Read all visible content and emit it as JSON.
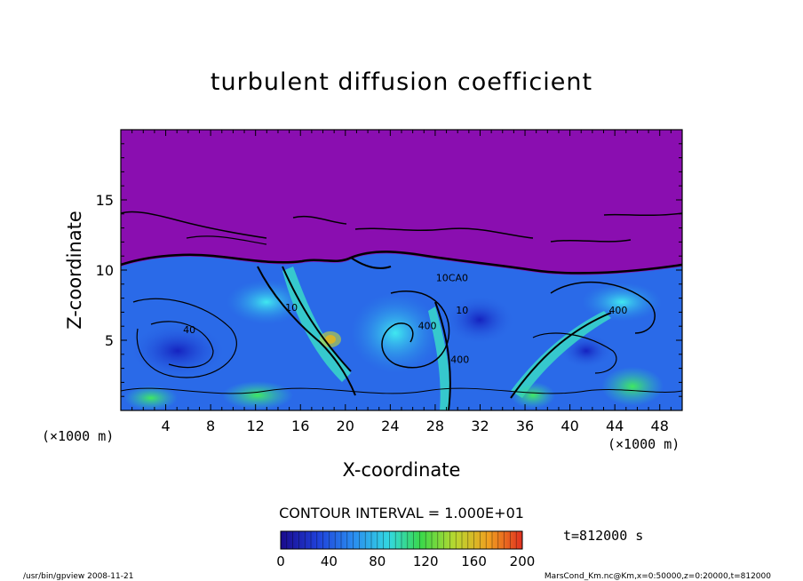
{
  "chart_data": {
    "type": "heatmap",
    "title": "turbulent diffusion coefficient",
    "xlabel": "X-coordinate",
    "ylabel": "Z-coordinate",
    "x_unit": "(×1000 m)",
    "y_unit": "(×1000 m)",
    "xlim": [
      0,
      50
    ],
    "ylim": [
      0,
      20
    ],
    "x_ticks": [
      4,
      8,
      12,
      16,
      20,
      24,
      28,
      32,
      36,
      40,
      44,
      48
    ],
    "y_ticks": [
      5,
      10,
      15
    ],
    "contour_interval": "CONTOUR INTERVAL = 1.000E+01",
    "contour_labels": [
      {
        "text": "10",
        "x": 15.2,
        "z": 7.1
      },
      {
        "text": "40",
        "x": 6.1,
        "z": 5.5
      },
      {
        "text": "400",
        "x": 27.3,
        "z": 5.8
      },
      {
        "text": "10",
        "x": 30.4,
        "z": 6.9
      },
      {
        "text": "400",
        "x": 30.2,
        "z": 3.4
      },
      {
        "text": "10CA0",
        "x": 29.5,
        "z": 9.2
      },
      {
        "text": "400",
        "x": 44.3,
        "z": 6.9
      }
    ],
    "colorbar": {
      "min": 0,
      "max": 200,
      "ticks": [
        0,
        40,
        80,
        120,
        160,
        200
      ],
      "stops": [
        "#1a0a8c",
        "#1f3fd8",
        "#2a8cf0",
        "#33d8e0",
        "#3ad84a",
        "#b8d830",
        "#f0a020",
        "#e03020"
      ]
    },
    "time_label": "t=812000 s",
    "colors": {
      "background_top": "#8a0eb0",
      "field_blue": "#2a6ae8",
      "field_dark": "#1a30c8",
      "field_cyan": "#38d8e8",
      "field_green": "#38e060",
      "field_orange": "#f08020"
    }
  },
  "footer": {
    "left": "/usr/bin/gpview   2008-11-21",
    "right": "MarsCond_Km.nc@Km,x=0:50000,z=0:20000,t=812000"
  }
}
